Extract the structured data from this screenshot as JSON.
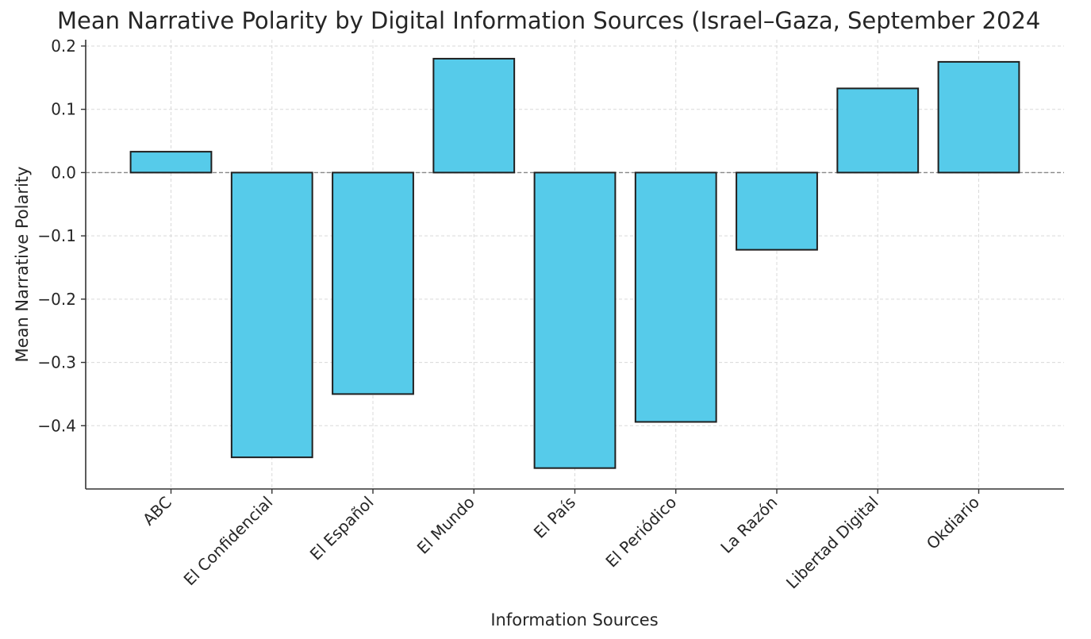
{
  "chart_data": {
    "type": "bar",
    "title": "Mean Narrative Polarity by Digital Information Sources (Israel–Gaza, September 2024",
    "xlabel": "Information Sources",
    "ylabel": "Mean Narrative Polarity",
    "categories": [
      "ABC",
      "El Confidencial",
      "El Español",
      "El Mundo",
      "El País",
      "El Periódico",
      "La Razón",
      "Libertad Digital",
      "Okdiario"
    ],
    "values": [
      0.033,
      -0.45,
      -0.35,
      0.18,
      -0.467,
      -0.394,
      -0.122,
      0.133,
      0.175
    ],
    "ylim": [
      -0.5,
      0.21
    ],
    "yticks": [
      0.2,
      0.1,
      0.0,
      -0.1,
      -0.2,
      -0.3,
      -0.4
    ],
    "ytick_labels": [
      "0.2",
      "0.1",
      "0.0",
      "−0.1",
      "−0.2",
      "−0.3",
      "−0.4"
    ],
    "grid": true,
    "bar_color": "#56cbea",
    "edge_color": "#1f1f1f"
  }
}
